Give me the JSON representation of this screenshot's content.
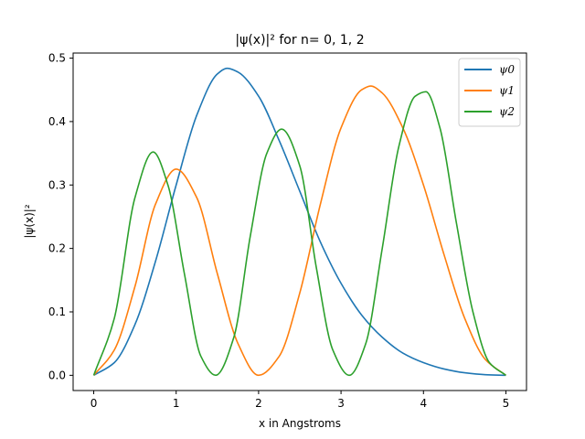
{
  "chart_data": {
    "type": "line",
    "title": "|ψ(x)|² for n= 0, 1, 2",
    "xlabel": "x in Angstroms",
    "ylabel": "|ψ(x)|²",
    "xlim": [
      -0.25,
      5.25
    ],
    "ylim": [
      -0.024,
      0.508
    ],
    "xticks": [
      0,
      1,
      2,
      3,
      4,
      5
    ],
    "xtick_labels": [
      "0",
      "1",
      "2",
      "3",
      "4",
      "5"
    ],
    "yticks": [
      0.0,
      0.1,
      0.2,
      0.3,
      0.4,
      0.5
    ],
    "ytick_labels": [
      "0.0",
      "0.1",
      "0.2",
      "0.3",
      "0.4",
      "0.5"
    ],
    "legend_position": "top-right",
    "grid": false,
    "series": [
      {
        "name": "ψ0",
        "color": "#1f77b4",
        "x": [
          0,
          0.25,
          0.5,
          0.75,
          1.0,
          1.25,
          1.5,
          1.62,
          1.75,
          2.0,
          2.25,
          2.5,
          2.75,
          3.0,
          3.25,
          3.5,
          3.75,
          4.0,
          4.25,
          4.5,
          4.75,
          5.0
        ],
        "y": [
          0.0,
          0.02,
          0.08,
          0.18,
          0.3,
          0.41,
          0.475,
          0.484,
          0.478,
          0.44,
          0.37,
          0.29,
          0.21,
          0.145,
          0.095,
          0.06,
          0.035,
          0.02,
          0.01,
          0.004,
          0.001,
          0.0
        ]
      },
      {
        "name": "ψ1",
        "color": "#ff7f0e",
        "x": [
          0,
          0.25,
          0.5,
          0.75,
          1.0,
          1.25,
          1.5,
          1.75,
          2.0,
          2.25,
          2.5,
          2.75,
          3.0,
          3.25,
          3.36,
          3.5,
          3.75,
          4.0,
          4.25,
          4.5,
          4.75,
          5.0
        ],
        "y": [
          0.0,
          0.04,
          0.14,
          0.27,
          0.325,
          0.28,
          0.16,
          0.05,
          0.0,
          0.03,
          0.13,
          0.27,
          0.39,
          0.45,
          0.456,
          0.445,
          0.39,
          0.3,
          0.19,
          0.09,
          0.025,
          0.0
        ]
      },
      {
        "name": "ψ2",
        "color": "#2ca02c",
        "x": [
          0,
          0.25,
          0.5,
          0.72,
          0.9,
          1.1,
          1.3,
          1.48,
          1.7,
          1.9,
          2.1,
          2.28,
          2.5,
          2.7,
          2.9,
          3.1,
          3.3,
          3.5,
          3.7,
          3.9,
          4.03,
          4.2,
          4.4,
          4.6,
          4.8,
          5.0
        ],
        "y": [
          0.0,
          0.09,
          0.28,
          0.352,
          0.3,
          0.16,
          0.03,
          0.0,
          0.06,
          0.22,
          0.35,
          0.388,
          0.33,
          0.17,
          0.04,
          0.0,
          0.05,
          0.2,
          0.36,
          0.44,
          0.447,
          0.39,
          0.24,
          0.1,
          0.02,
          0.0
        ]
      }
    ]
  }
}
